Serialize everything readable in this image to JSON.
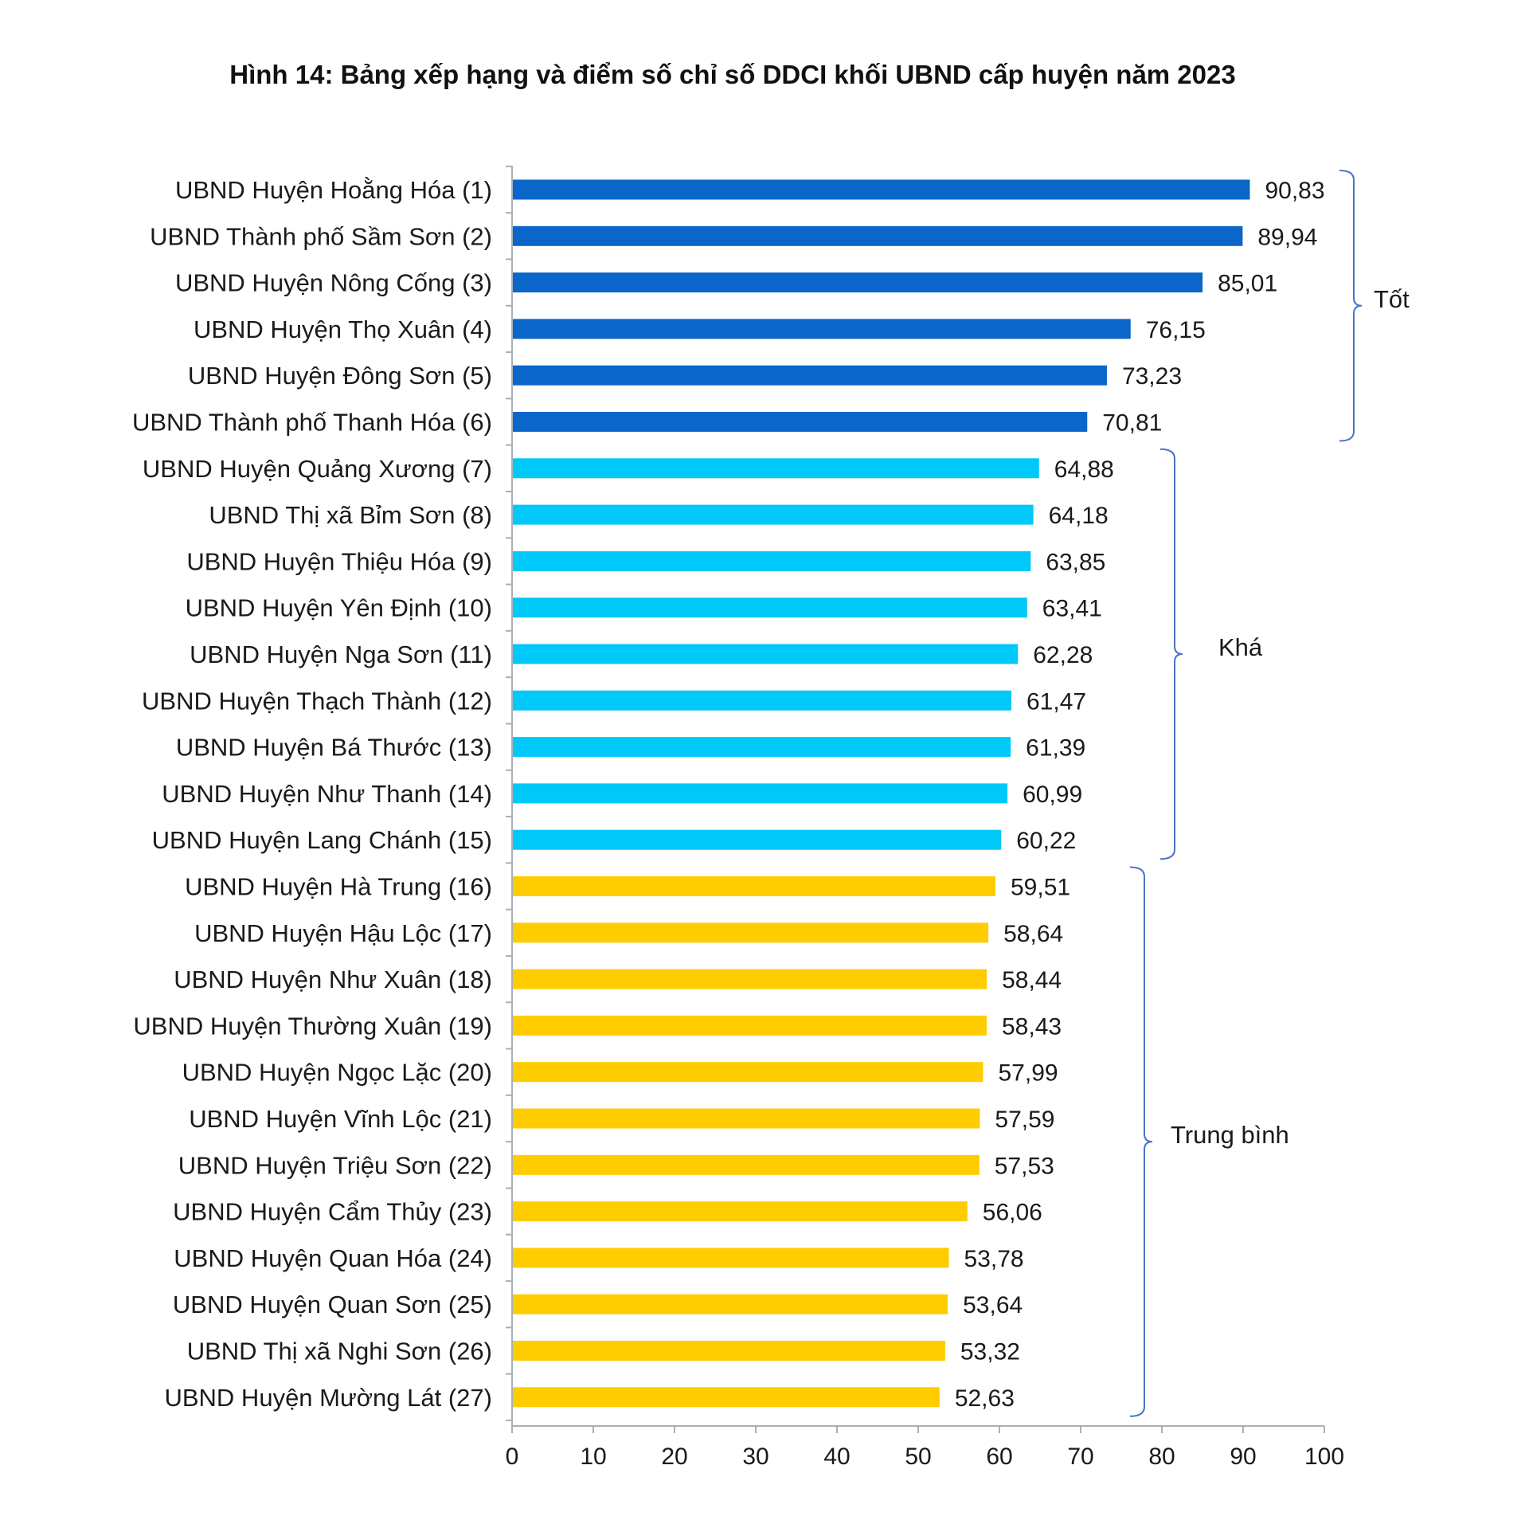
{
  "chart_data": {
    "type": "bar",
    "orientation": "horizontal",
    "title": "Hình 14: Bảng xếp hạng và điểm số chỉ số DDCI khối UBND cấp huyện năm 2023",
    "xlabel": "",
    "ylabel": "",
    "xlim": [
      0,
      100
    ],
    "x_ticks": [
      "0",
      "10",
      "20",
      "30",
      "40",
      "50",
      "60",
      "70",
      "80",
      "90",
      "100"
    ],
    "categories": [
      "UBND Huyện Hoằng Hóa (1)",
      "UBND Thành phố Sầm Sơn (2)",
      "UBND Huyện Nông Cống (3)",
      "UBND Huyện Thọ Xuân (4)",
      "UBND Huyện Đông Sơn (5)",
      "UBND Thành phố Thanh Hóa (6)",
      "UBND Huyện Quảng Xương (7)",
      "UBND Thị xã Bỉm Sơn (8)",
      "UBND Huyện Thiệu Hóa (9)",
      "UBND Huyện Yên Định (10)",
      "UBND Huyện Nga Sơn (11)",
      "UBND Huyện Thạch Thành (12)",
      "UBND Huyện Bá Thước (13)",
      "UBND Huyện Như Thanh (14)",
      "UBND Huyện Lang Chánh (15)",
      "UBND Huyện Hà Trung (16)",
      "UBND Huyện Hậu Lộc (17)",
      "UBND Huyện Như Xuân (18)",
      "UBND Huyện Thường Xuân (19)",
      "UBND Huyện Ngọc Lặc (20)",
      "UBND Huyện Vĩnh Lộc (21)",
      "UBND Huyện Triệu Sơn (22)",
      "UBND Huyện Cẩm Thủy (23)",
      "UBND Huyện Quan Hóa (24)",
      "UBND Huyện Quan Sơn (25)",
      "UBND Thị xã Nghi Sơn (26)",
      "UBND Huyện Mường Lát (27)"
    ],
    "values": [
      90.83,
      89.94,
      85.01,
      76.15,
      73.23,
      70.81,
      64.88,
      64.18,
      63.85,
      63.41,
      62.28,
      61.47,
      61.39,
      60.99,
      60.22,
      59.51,
      58.64,
      58.44,
      58.43,
      57.99,
      57.59,
      57.53,
      56.06,
      53.78,
      53.64,
      53.32,
      52.63
    ],
    "value_labels": [
      "90,83",
      "89,94",
      "85,01",
      "76,15",
      "73,23",
      "70,81",
      "64,88",
      "64,18",
      "63,85",
      "63,41",
      "62,28",
      "61,47",
      "61,39",
      "60,99",
      "60,22",
      "59,51",
      "58,64",
      "58,44",
      "58,43",
      "57,99",
      "57,59",
      "57,53",
      "56,06",
      "53,78",
      "53,64",
      "53,32",
      "52,63"
    ],
    "groups": [
      {
        "label": "Tốt",
        "first": 0,
        "last": 5,
        "color": "#0a66c8"
      },
      {
        "label": "Khá",
        "first": 6,
        "last": 14,
        "color": "#00c8f8"
      },
      {
        "label": "Trung bình",
        "first": 15,
        "last": 26,
        "color": "#ffcc00"
      }
    ],
    "grid": false,
    "legend": "none"
  }
}
